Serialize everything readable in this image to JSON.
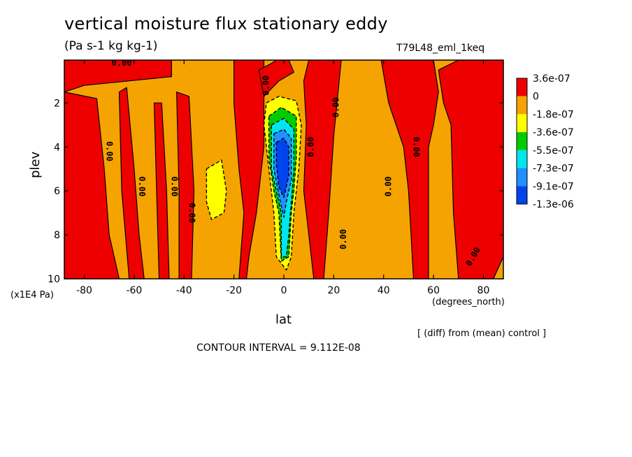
{
  "header": {
    "title": "vertical moisture flux stationary eddy",
    "units": "(Pa s-1 kg kg-1)",
    "run_name": "T79L48_eml_1keq"
  },
  "footer": {
    "diff_note": "[ (diff) from (mean) control ]",
    "contour_interval": "CONTOUR INTERVAL = 9.112E-08"
  },
  "chart_data": {
    "type": "heatmap",
    "title": "vertical moisture flux stationary eddy",
    "xlabel": "lat",
    "x_unit": "(degrees_north)",
    "ylabel": "plev",
    "y_unit": "(x1E4 Pa)",
    "xlim": [
      -88,
      88
    ],
    "ylim": [
      10,
      0.05
    ],
    "y_inverted": true,
    "x_ticks": [
      -80,
      -60,
      -40,
      -20,
      0,
      20,
      40,
      60,
      80
    ],
    "y_ticks": [
      2,
      4,
      6,
      8,
      10
    ],
    "colorbar": {
      "labels": [
        "3.6e-07",
        "0",
        "-1.8e-07",
        "-3.6e-07",
        "-5.5e-07",
        "-7.3e-07",
        "-9.1e-07",
        "-1.3e-06"
      ],
      "colors": [
        "#ee0000",
        "#f5a300",
        "#ffff00",
        "#00cc00",
        "#00e5ee",
        "#1e90ff",
        "#0044ee"
      ]
    },
    "background_level": {
      "range": "-1.8e-07 to 0",
      "color": "#f5a300"
    },
    "regions": [
      {
        "level": "0 to 3.6e-07",
        "color": "#ee0000",
        "points": [
          [
            -88,
            0.05
          ],
          [
            -45,
            0.05
          ],
          [
            -45,
            0.8
          ],
          [
            -80,
            1.2
          ],
          [
            -88,
            1.5
          ]
        ]
      },
      {
        "level": "0 to 3.6e-07",
        "color": "#ee0000",
        "points": [
          [
            -88,
            1.5
          ],
          [
            -75,
            1.8
          ],
          [
            -72,
            5
          ],
          [
            -70,
            8
          ],
          [
            -66,
            10
          ],
          [
            -88,
            10
          ]
        ]
      },
      {
        "level": "0 to 3.6e-07",
        "color": "#ee0000",
        "points": [
          [
            -66,
            1.5
          ],
          [
            -63,
            1.3
          ],
          [
            -60,
            5
          ],
          [
            -58,
            8
          ],
          [
            -56,
            10
          ],
          [
            -62,
            10
          ],
          [
            -65,
            6
          ]
        ]
      },
      {
        "level": "0 to 3.6e-07",
        "color": "#ee0000",
        "points": [
          [
            -52,
            2
          ],
          [
            -49,
            2
          ],
          [
            -47,
            6
          ],
          [
            -46,
            10
          ],
          [
            -50,
            10
          ],
          [
            -51,
            6
          ]
        ]
      },
      {
        "level": "0 to 3.6e-07",
        "color": "#ee0000",
        "points": [
          [
            -43,
            1.5
          ],
          [
            -38,
            1.7
          ],
          [
            -36,
            6
          ],
          [
            -37,
            10
          ],
          [
            -42,
            10
          ],
          [
            -42,
            6
          ]
        ]
      },
      {
        "level": "0 to 3.6e-07",
        "color": "#ee0000",
        "points": [
          [
            -20,
            0.05
          ],
          [
            -8,
            0.05
          ],
          [
            -8,
            4
          ],
          [
            -11,
            7
          ],
          [
            -14,
            9
          ],
          [
            -15,
            10
          ],
          [
            -18,
            10
          ],
          [
            -16,
            7
          ],
          [
            -18,
            5
          ],
          [
            -20,
            2
          ]
        ]
      },
      {
        "level": "0 to 3.6e-07",
        "color": "#ee0000",
        "points": [
          [
            -10,
            0.5
          ],
          [
            -5,
            0.2
          ],
          [
            -3,
            0.05
          ],
          [
            2,
            0.05
          ],
          [
            4,
            0.6
          ],
          [
            -2,
            1
          ],
          [
            -8,
            1.7
          ]
        ]
      },
      {
        "level": "0 to 3.6e-07",
        "color": "#ee0000",
        "points": [
          [
            10,
            0.05
          ],
          [
            23,
            0.05
          ],
          [
            20,
            3.5
          ],
          [
            18,
            7
          ],
          [
            16,
            10
          ],
          [
            12,
            10
          ],
          [
            10,
            8
          ],
          [
            8,
            6
          ],
          [
            9,
            3
          ],
          [
            8,
            1
          ]
        ]
      },
      {
        "level": "0 to 3.6e-07",
        "color": "#ee0000",
        "points": [
          [
            39,
            0.05
          ],
          [
            60,
            0.05
          ],
          [
            62,
            1.5
          ],
          [
            60,
            3
          ],
          [
            58,
            4
          ],
          [
            58,
            10
          ],
          [
            52,
            10
          ],
          [
            50,
            6
          ],
          [
            48,
            4
          ],
          [
            45,
            3
          ],
          [
            42,
            2
          ]
        ]
      },
      {
        "level": "0 to 3.6e-07",
        "color": "#ee0000",
        "points": [
          [
            62,
            0.5
          ],
          [
            70,
            0.05
          ],
          [
            88,
            0.05
          ],
          [
            88,
            9
          ],
          [
            84,
            10
          ],
          [
            70,
            10
          ],
          [
            68,
            7
          ],
          [
            67,
            3
          ],
          [
            64,
            2
          ]
        ]
      },
      {
        "level": "-3.6e-07 to -1.8e-07",
        "color": "#ffff00",
        "points": [
          [
            -31,
            5
          ],
          [
            -25,
            4.6
          ],
          [
            -23,
            6
          ],
          [
            -24,
            7
          ],
          [
            -29,
            7.3
          ],
          [
            -31,
            6.5
          ]
        ]
      },
      {
        "level": "-3.6e-07 to -1.8e-07",
        "color": "#ffff00",
        "points": [
          [
            -7,
            2
          ],
          [
            -2,
            1.7
          ],
          [
            5,
            1.9
          ],
          [
            7,
            3
          ],
          [
            6,
            5
          ],
          [
            4,
            7
          ],
          [
            3,
            9
          ],
          [
            1,
            9.6
          ],
          [
            -3,
            9
          ],
          [
            -4,
            7
          ],
          [
            -6,
            5
          ],
          [
            -8,
            3
          ]
        ]
      },
      {
        "level": "-5.5e-07 to -3.6e-07",
        "color": "#00cc00",
        "points": [
          [
            -6,
            2.6
          ],
          [
            -1,
            2.2
          ],
          [
            5,
            2.6
          ],
          [
            5,
            4.5
          ],
          [
            4,
            6
          ],
          [
            3,
            7
          ],
          [
            2,
            9
          ],
          [
            -1,
            9.2
          ],
          [
            -2,
            7
          ],
          [
            -4,
            6
          ],
          [
            -6,
            4.5
          ]
        ]
      },
      {
        "level": "-7.3e-07 to -5.5e-07",
        "color": "#00e5ee",
        "points": [
          [
            -5,
            3
          ],
          [
            0,
            2.7
          ],
          [
            4,
            3.2
          ],
          [
            4,
            5
          ],
          [
            3,
            6.5
          ],
          [
            2,
            8
          ],
          [
            1,
            9
          ],
          [
            -1,
            9
          ],
          [
            -1,
            7
          ],
          [
            -3,
            6
          ],
          [
            -5,
            5
          ]
        ]
      },
      {
        "level": "-9.1e-07 to -7.3e-07",
        "color": "#1e90ff",
        "points": [
          [
            -4,
            3.4
          ],
          [
            0,
            3.2
          ],
          [
            3,
            3.6
          ],
          [
            3,
            5.5
          ],
          [
            1,
            6.5
          ],
          [
            0,
            7.2
          ],
          [
            -2,
            6.2
          ],
          [
            -4,
            5
          ]
        ]
      },
      {
        "level": "< -9.1e-07",
        "color": "#0044ee",
        "points": [
          [
            -3,
            3.8
          ],
          [
            0,
            3.6
          ],
          [
            2,
            4
          ],
          [
            2,
            5.3
          ],
          [
            0,
            6.3
          ],
          [
            -2,
            5.8
          ],
          [
            -3,
            4.8
          ]
        ]
      }
    ],
    "contour_labels": [
      {
        "text": "0.00",
        "lat": -65,
        "plev": 0.2,
        "rotate": 0
      },
      {
        "text": "0.00",
        "lat": -7,
        "plev": 1.2,
        "rotate": -90
      },
      {
        "text": "0.00",
        "lat": 21,
        "plev": 2.2,
        "rotate": -90
      },
      {
        "text": "0.00",
        "lat": -70,
        "plev": 4.2,
        "rotate": 90
      },
      {
        "text": "0.00",
        "lat": 53,
        "plev": 4.0,
        "rotate": 90
      },
      {
        "text": "0.00",
        "lat": -57,
        "plev": 5.8,
        "rotate": 90
      },
      {
        "text": "0.00",
        "lat": -44,
        "plev": 5.8,
        "rotate": 90
      },
      {
        "text": "0.00",
        "lat": -37,
        "plev": 7.0,
        "rotate": 90
      },
      {
        "text": "0.00",
        "lat": 11,
        "plev": 4.0,
        "rotate": -90
      },
      {
        "text": "0.00",
        "lat": 42,
        "plev": 5.8,
        "rotate": -90
      },
      {
        "text": "0.00",
        "lat": 24,
        "plev": 8.2,
        "rotate": -90
      },
      {
        "text": "0.00",
        "lat": 76,
        "plev": 9.0,
        "rotate": -60
      }
    ]
  }
}
